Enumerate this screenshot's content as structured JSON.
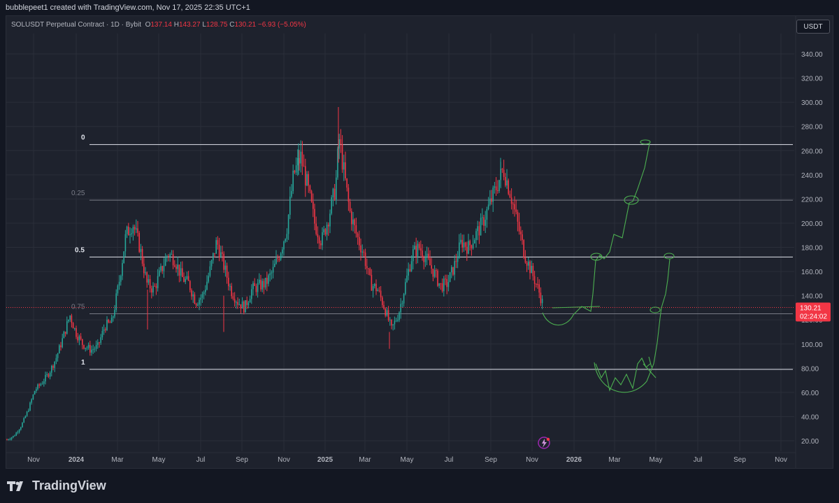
{
  "header": {
    "text": "bubblepeet1 created with TradingView.com, Nov 17, 2025 22:35 UTC+1"
  },
  "legend": {
    "symbol": "SOLUSDT Perpetual Contract · 1D · Bybit",
    "o_label": "O",
    "o_value": "137.14",
    "h_label": "H",
    "h_value": "143.27",
    "l_label": "L",
    "l_value": "128.75",
    "c_label": "C",
    "c_value": "130.21",
    "change": "−6.93 (−5.05%)"
  },
  "currency_button": "USDT",
  "price_tag": {
    "price": "130.21",
    "countdown": "02:24:02"
  },
  "brand": "TradingView",
  "colors": {
    "up": "#26a69a",
    "down": "#f23645",
    "drawing": "#4caf50",
    "background": "#1e222d",
    "grid": "#2a2e39"
  },
  "chart_data": {
    "type": "candlestick",
    "ylim": [
      10,
      350
    ],
    "y_ticks": [
      "340.00",
      "320.00",
      "300.00",
      "280.00",
      "260.00",
      "240.00",
      "220.00",
      "200.00",
      "180.00",
      "160.00",
      "140.00",
      "120.00",
      "100.00",
      "80.00",
      "60.00",
      "40.00",
      "20.00"
    ],
    "x_ticks": [
      "Nov",
      "2024",
      "Mar",
      "May",
      "Jul",
      "Sep",
      "Nov",
      "2025",
      "Mar",
      "May",
      "Jul",
      "Sep",
      "Nov",
      "2026",
      "Mar",
      "May",
      "Jul",
      "Sep",
      "Nov"
    ],
    "current_price": 130.21,
    "fib_levels": [
      {
        "label": "0",
        "price": 265
      },
      {
        "label": "0.25",
        "price": 219
      },
      {
        "label": "0.5",
        "price": 172
      },
      {
        "label": "0.75",
        "price": 125
      },
      {
        "label": "1",
        "price": 79
      }
    ],
    "price_path": [
      [
        0,
        20
      ],
      [
        10,
        21
      ],
      [
        20,
        24
      ],
      [
        30,
        32
      ],
      [
        40,
        45
      ],
      [
        50,
        62
      ],
      [
        60,
        68
      ],
      [
        70,
        76
      ],
      [
        80,
        88
      ],
      [
        90,
        105
      ],
      [
        100,
        124
      ],
      [
        108,
        110
      ],
      [
        118,
        100
      ],
      [
        130,
        95
      ],
      [
        140,
        98
      ],
      [
        150,
        115
      ],
      [
        160,
        118
      ],
      [
        170,
        150
      ],
      [
        180,
        190
      ],
      [
        190,
        200
      ],
      [
        200,
        180
      ],
      [
        210,
        150
      ],
      [
        220,
        145
      ],
      [
        230,
        160
      ],
      [
        240,
        175
      ],
      [
        250,
        170
      ],
      [
        260,
        155
      ],
      [
        270,
        150
      ],
      [
        280,
        135
      ],
      [
        290,
        140
      ],
      [
        300,
        160
      ],
      [
        310,
        185
      ],
      [
        320,
        165
      ],
      [
        330,
        145
      ],
      [
        340,
        135
      ],
      [
        350,
        130
      ],
      [
        360,
        145
      ],
      [
        370,
        148
      ],
      [
        380,
        150
      ],
      [
        390,
        160
      ],
      [
        400,
        175
      ],
      [
        410,
        195
      ],
      [
        420,
        240
      ],
      [
        430,
        255
      ],
      [
        440,
        230
      ],
      [
        450,
        200
      ],
      [
        460,
        185
      ],
      [
        470,
        205
      ],
      [
        480,
        230
      ],
      [
        485,
        270
      ],
      [
        490,
        250
      ],
      [
        500,
        210
      ],
      [
        510,
        190
      ],
      [
        520,
        175
      ],
      [
        530,
        150
      ],
      [
        540,
        145
      ],
      [
        550,
        130
      ],
      [
        560,
        112
      ],
      [
        570,
        125
      ],
      [
        580,
        150
      ],
      [
        590,
        175
      ],
      [
        600,
        180
      ],
      [
        610,
        170
      ],
      [
        620,
        160
      ],
      [
        630,
        148
      ],
      [
        640,
        150
      ],
      [
        650,
        165
      ],
      [
        660,
        185
      ],
      [
        670,
        180
      ],
      [
        680,
        190
      ],
      [
        690,
        200
      ],
      [
        700,
        215
      ],
      [
        710,
        230
      ],
      [
        720,
        245
      ],
      [
        730,
        225
      ],
      [
        740,
        200
      ],
      [
        750,
        175
      ],
      [
        760,
        160
      ],
      [
        770,
        145
      ],
      [
        778,
        130
      ]
    ]
  }
}
